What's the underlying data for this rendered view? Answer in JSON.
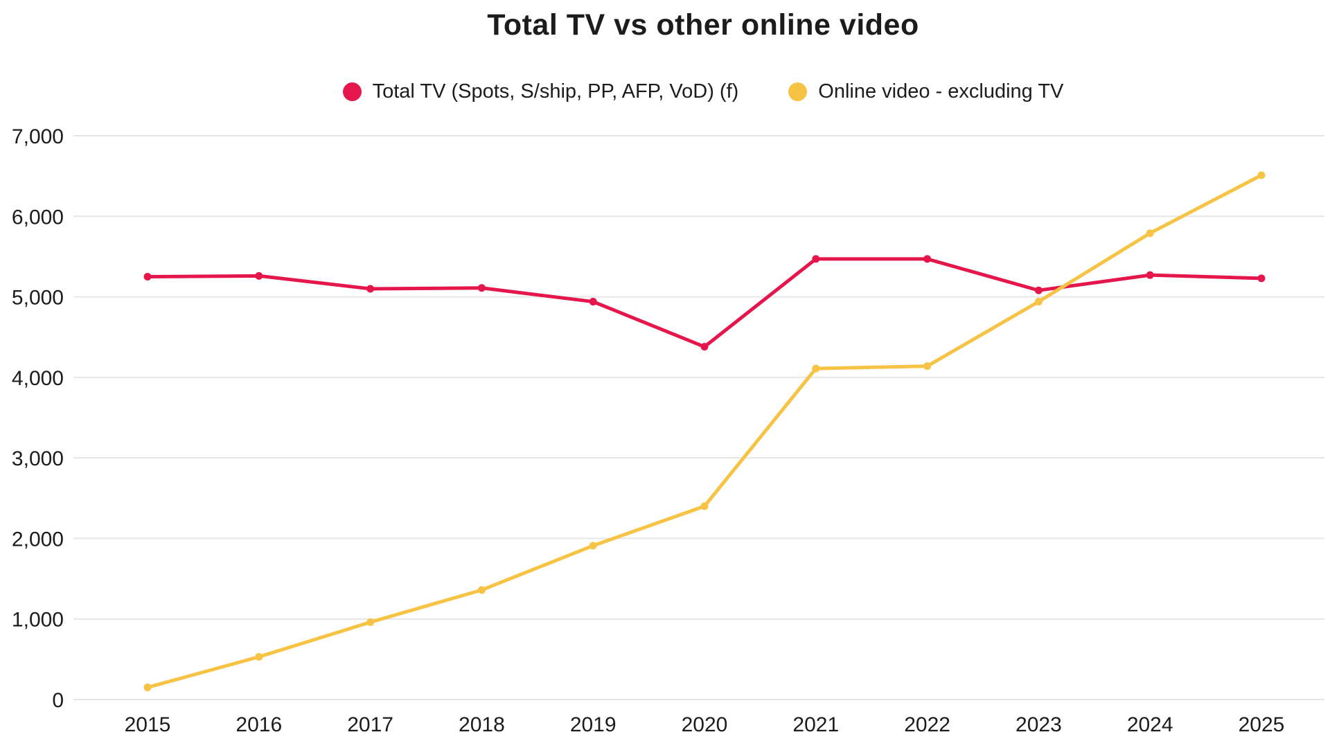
{
  "chart_data": {
    "type": "line",
    "title": "Total TV vs other online video",
    "categories": [
      "2015",
      "2016",
      "2017",
      "2018",
      "2019",
      "2020",
      "2021",
      "2022",
      "2023",
      "2024",
      "2025"
    ],
    "series": [
      {
        "name": "Total TV (Spots, S/ship, PP, AFP, VoD) (f)",
        "color": "#e4164c",
        "values": [
          5250,
          5260,
          5100,
          5110,
          4940,
          4380,
          5470,
          5470,
          5080,
          5270,
          5230
        ]
      },
      {
        "name": "Online video - excluding TV",
        "color": "#f6c344",
        "values": [
          150,
          530,
          960,
          1360,
          1910,
          2400,
          4110,
          4140,
          4940,
          5790,
          6510
        ]
      }
    ],
    "xlabel": "",
    "ylabel": "",
    "ylim": [
      0,
      7000
    ],
    "ytick_step": 1000,
    "ytick_labels": [
      "0",
      "1,000",
      "2,000",
      "3,000",
      "4,000",
      "5,000",
      "6,000",
      "7,000"
    ],
    "grid": true,
    "gridline_color": "#e6e6e6",
    "background_color": "#ffffff",
    "text_color": "#1c1c1c",
    "legend_position": "top"
  }
}
